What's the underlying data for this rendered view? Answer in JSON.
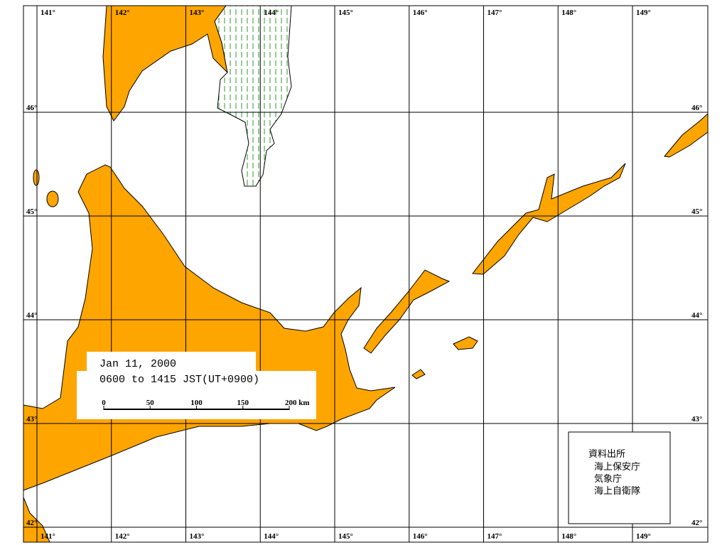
{
  "longitude_labels_top": [
    "141°",
    "142°",
    "143°",
    "144°",
    "145°",
    "146°",
    "147°",
    "148°",
    "149°"
  ],
  "longitude_labels_bottom": [
    "141°",
    "142°",
    "143°",
    "144°",
    "145°",
    "146°",
    "147°",
    "148°",
    "149°"
  ],
  "latitude_labels_left": [
    "46°",
    "45°",
    "44°",
    "43°",
    "42°"
  ],
  "latitude_labels_right": [
    "46°",
    "45°",
    "44°",
    "43°",
    "42°"
  ],
  "info": {
    "date": "Jan 11, 2000",
    "time": "0600 to 1415 JST(UT+0900)"
  },
  "scale_labels": [
    "0",
    "50",
    "100",
    "150",
    "200 km"
  ],
  "source": {
    "title": "資料出所",
    "agencies": [
      "海上保安庁",
      "気象庁",
      "海上自衛隊"
    ]
  }
}
